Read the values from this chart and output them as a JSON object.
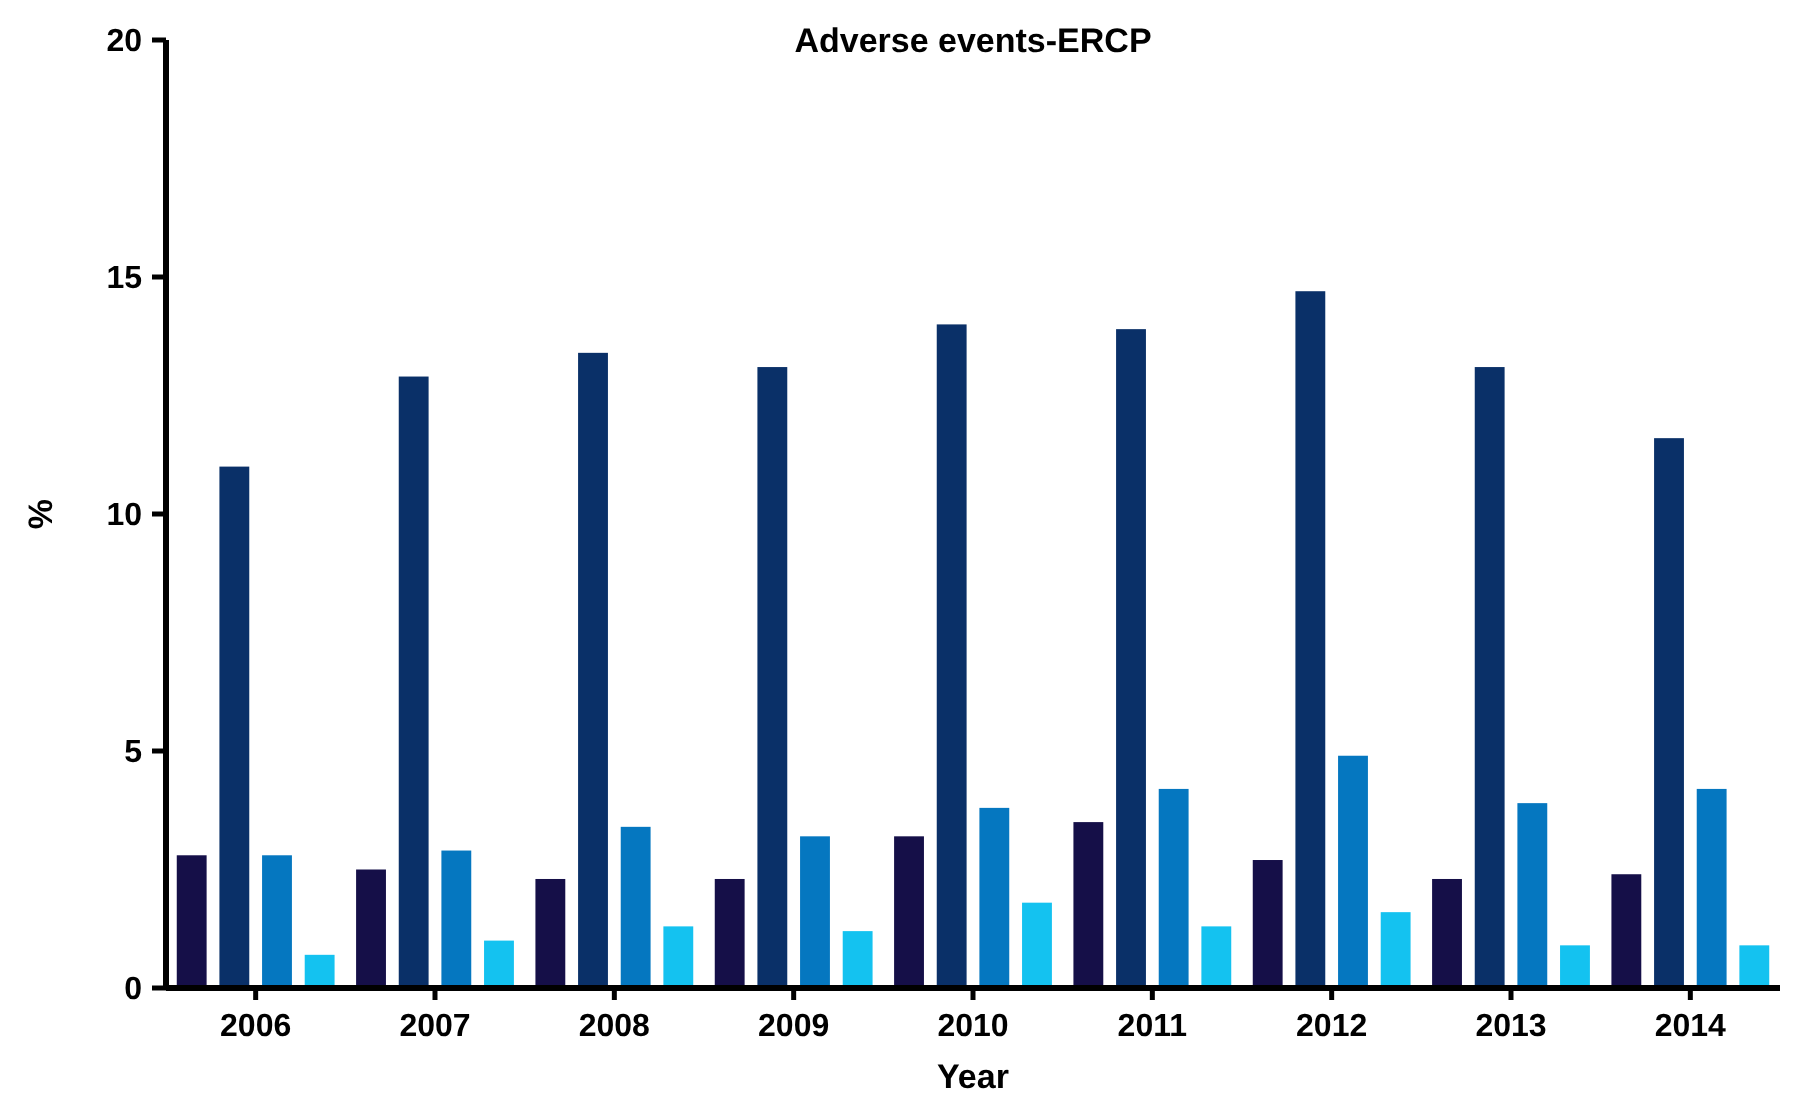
{
  "chart_data": {
    "type": "bar",
    "title": "Adverse events-ERCP",
    "xlabel": "Year",
    "ylabel": "%",
    "categories": [
      "2006",
      "2007",
      "2008",
      "2009",
      "2010",
      "2011",
      "2012",
      "2013",
      "2014"
    ],
    "series": [
      {
        "color": "#150f48",
        "values": [
          2.8,
          2.5,
          2.3,
          2.3,
          3.2,
          3.5,
          2.7,
          2.3,
          2.4
        ]
      },
      {
        "color": "#0a3068",
        "values": [
          11.0,
          12.9,
          13.4,
          13.1,
          14.0,
          13.9,
          14.7,
          13.1,
          11.6
        ]
      },
      {
        "color": "#0577c0",
        "values": [
          2.8,
          2.9,
          3.4,
          3.2,
          3.8,
          4.2,
          4.9,
          3.9,
          4.2
        ]
      },
      {
        "color": "#14c2f0",
        "values": [
          0.7,
          1.0,
          1.3,
          1.2,
          1.8,
          1.3,
          1.6,
          0.9,
          0.9
        ]
      }
    ],
    "ylim": [
      0,
      20
    ],
    "yticks": [
      0,
      5,
      10,
      15,
      20
    ],
    "grid": false
  }
}
